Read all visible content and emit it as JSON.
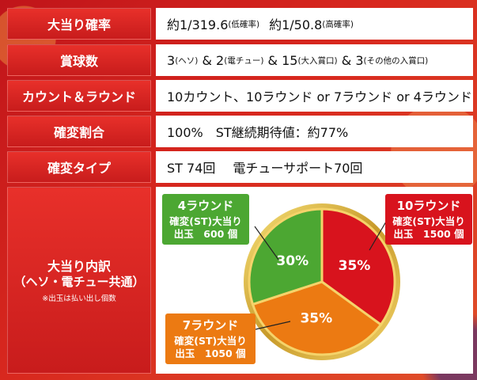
{
  "rows": {
    "prob": {
      "label": "大当り確率",
      "v1": "約1/319.6",
      "v1s": "(低確率)",
      "v2": "約1/50.8",
      "v2s": "(高確率)"
    },
    "prize": {
      "label": "賞球数",
      "a": "3",
      "as": "(ヘソ)",
      "b": "& 2",
      "bs": "(電チュー)",
      "c": "& 15",
      "cs": "(大入賞口)",
      "d": "& 3",
      "ds": "(その他の入賞口)"
    },
    "count": {
      "label": "カウント＆ラウンド",
      "value": "10カウント、10ラウンド or 7ラウンド or 4ラウンド"
    },
    "kakuhen": {
      "label": "確変割合",
      "value": "100%　ST継続期待値：約77%"
    },
    "type": {
      "label": "確変タイプ",
      "v1": "ST 74回",
      "v2": "電チューサポート70回"
    },
    "breakdown": {
      "label1": "大当り内訳",
      "label2": "（ヘソ・電チュー共通）",
      "note": "※出玉は払い出し個数"
    }
  },
  "chart_data": {
    "type": "pie",
    "slices": [
      {
        "name": "10ラウンド",
        "value": 35,
        "label": "35%",
        "color": "#d8131d",
        "desc": "確変(ST)大当り",
        "payout": "出玉　1500 個"
      },
      {
        "name": "7ラウンド",
        "value": 35,
        "label": "35%",
        "color": "#ec7a12",
        "desc": "確変(ST)大当り",
        "payout": "出玉　1050 個"
      },
      {
        "name": "4ラウンド",
        "value": 30,
        "label": "30%",
        "color": "#4ca732",
        "desc": "確変(ST)大当り",
        "payout": "出玉　600 個"
      }
    ]
  }
}
